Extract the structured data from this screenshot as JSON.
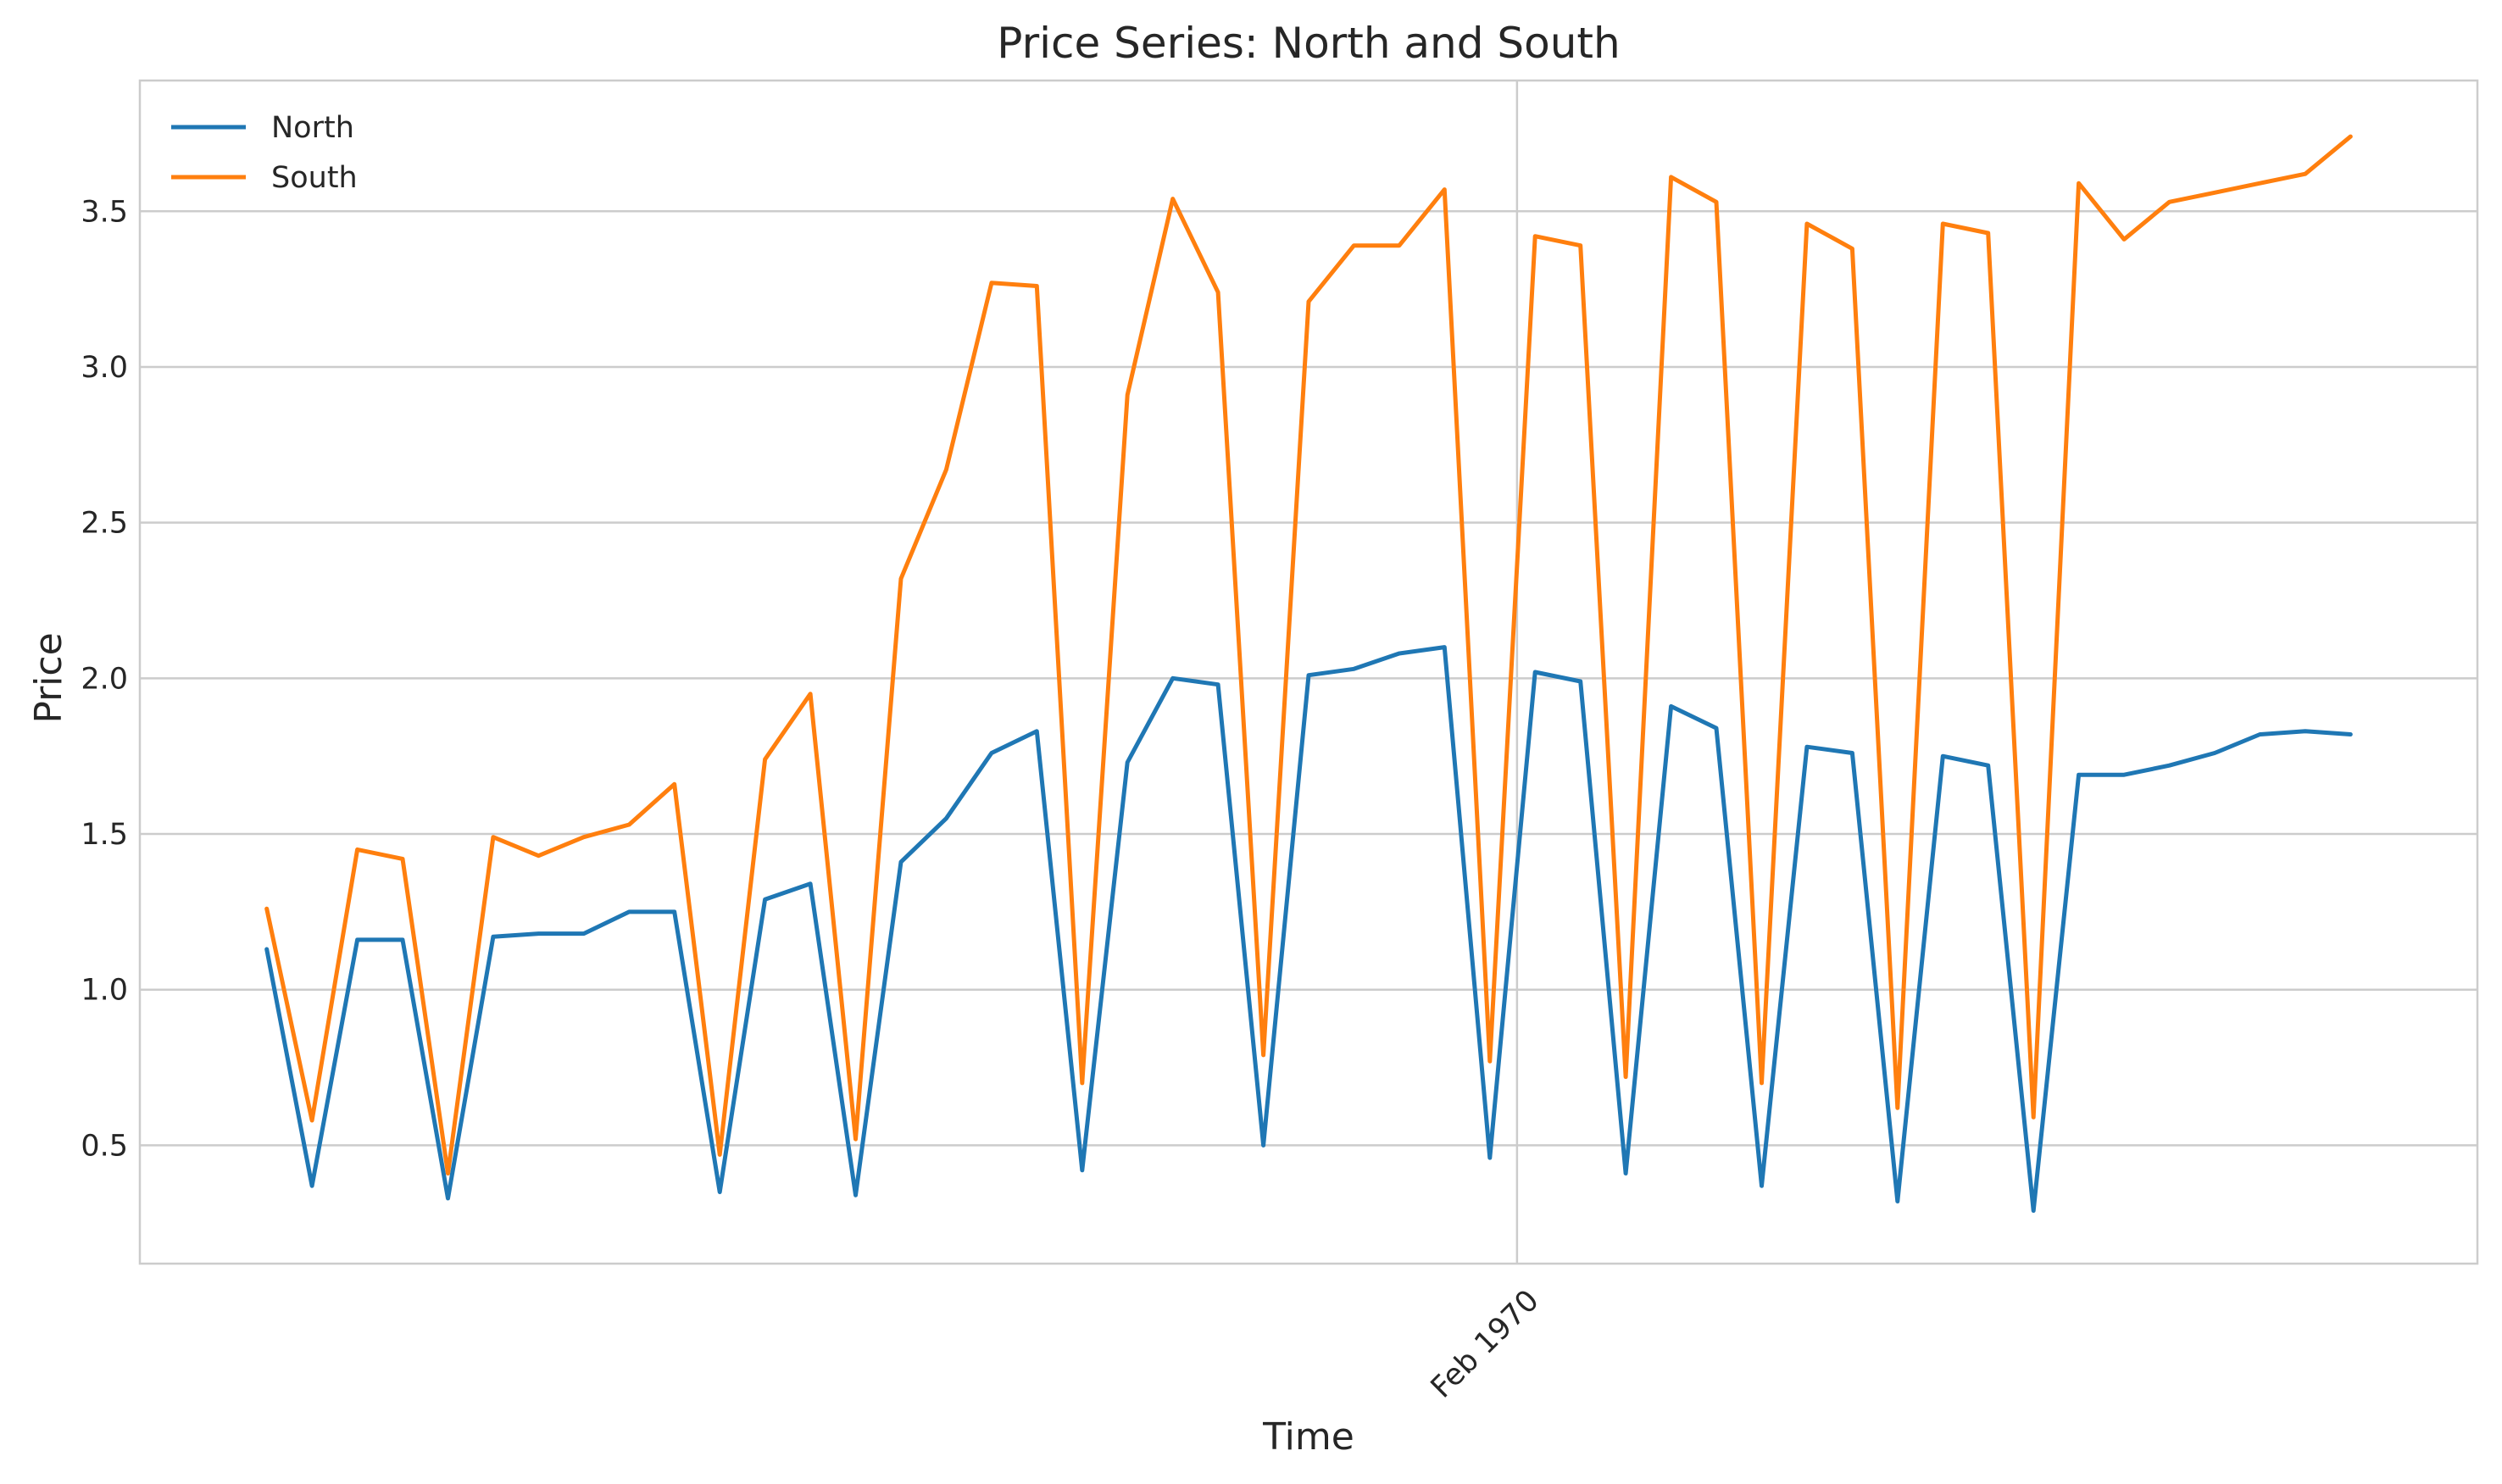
{
  "chart_data": {
    "type": "line",
    "title": "Price Series: North and South",
    "xlabel": "Time",
    "ylabel": "Price",
    "ylim": [
      0.12,
      3.92
    ],
    "yticks": [
      0.5,
      1.0,
      1.5,
      2.0,
      2.5,
      3.0,
      3.5
    ],
    "ytick_labels": [
      "0.5",
      "1.0",
      "1.5",
      "2.0",
      "2.5",
      "3.0",
      "3.5"
    ],
    "xlim": [
      "1970-01-06 16:00",
      "1970-02-18 16:00"
    ],
    "xticks": [
      "1970-02-01 00:00"
    ],
    "xtick_labels": [
      "Feb 1970"
    ],
    "xtick_rotation": 45,
    "grid": true,
    "legend_position": "top-left",
    "x": [
      "1970-01-09 00:00",
      "1970-01-09 20:00",
      "1970-01-10 16:00",
      "1970-01-11 12:00",
      "1970-01-12 08:00",
      "1970-01-13 04:00",
      "1970-01-14 00:00",
      "1970-01-14 20:00",
      "1970-01-15 16:00",
      "1970-01-16 12:00",
      "1970-01-17 08:00",
      "1970-01-18 04:00",
      "1970-01-19 00:00",
      "1970-01-19 20:00",
      "1970-01-20 16:00",
      "1970-01-21 12:00",
      "1970-01-22 08:00",
      "1970-01-23 04:00",
      "1970-01-24 00:00",
      "1970-01-24 20:00",
      "1970-01-25 16:00",
      "1970-01-26 12:00",
      "1970-01-27 08:00",
      "1970-01-28 04:00",
      "1970-01-29 00:00",
      "1970-01-29 20:00",
      "1970-01-30 16:00",
      "1970-01-31 12:00",
      "1970-02-01 08:00",
      "1970-02-02 04:00",
      "1970-02-03 00:00",
      "1970-02-03 20:00",
      "1970-02-04 16:00",
      "1970-02-05 12:00",
      "1970-02-06 08:00",
      "1970-02-07 04:00",
      "1970-02-08 00:00",
      "1970-02-08 20:00",
      "1970-02-09 16:00",
      "1970-02-10 12:00",
      "1970-02-11 08:00",
      "1970-02-12 04:00",
      "1970-02-13 00:00",
      "1970-02-13 20:00",
      "1970-02-14 16:00",
      "1970-02-15 12:00",
      "1970-02-16 08:00"
    ],
    "series": [
      {
        "name": "North",
        "color": "#1f77b4",
        "values": [
          1.13,
          0.37,
          1.16,
          1.16,
          0.33,
          1.17,
          1.18,
          1.18,
          1.25,
          1.25,
          0.35,
          1.29,
          1.34,
          0.34,
          1.41,
          1.55,
          1.76,
          1.83,
          0.42,
          1.73,
          2.0,
          1.98,
          0.5,
          2.01,
          2.03,
          2.08,
          2.1,
          0.46,
          2.02,
          1.99,
          0.41,
          1.91,
          1.84,
          0.37,
          1.78,
          1.76,
          0.32,
          1.75,
          1.72,
          0.29,
          1.69,
          1.69,
          1.72,
          1.76,
          1.82,
          1.83,
          1.82
        ]
      },
      {
        "name": "South",
        "color": "#ff7f0e",
        "values": [
          1.26,
          0.58,
          1.45,
          1.42,
          0.41,
          1.49,
          1.43,
          1.49,
          1.53,
          1.66,
          0.47,
          1.74,
          1.95,
          0.52,
          2.32,
          2.67,
          3.27,
          3.26,
          0.7,
          2.91,
          3.54,
          3.24,
          0.79,
          3.21,
          3.39,
          3.39,
          3.57,
          0.77,
          3.42,
          3.39,
          0.72,
          3.61,
          3.53,
          0.7,
          3.46,
          3.38,
          0.62,
          3.46,
          3.43,
          0.59,
          3.59,
          3.41,
          3.53,
          3.56,
          3.59,
          3.62,
          3.74
        ]
      }
    ]
  }
}
